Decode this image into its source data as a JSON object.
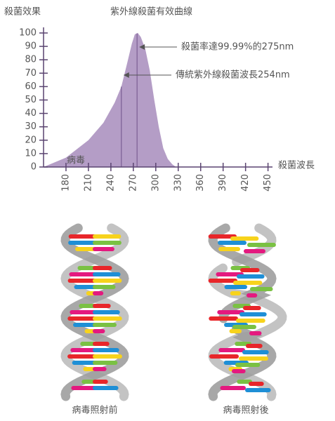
{
  "chart_data": {
    "type": "area",
    "title": "紫外線殺菌有效曲線",
    "y_label": "殺菌效果",
    "x_label": "殺菌波長",
    "baseline_label": "病毒",
    "x": [
      150,
      180,
      210,
      230,
      245,
      254,
      262,
      268,
      272,
      276,
      280,
      286,
      292,
      298,
      304,
      310,
      316,
      322,
      327
    ],
    "values": [
      0,
      7,
      20,
      33,
      48,
      60,
      78,
      92,
      99,
      100,
      97,
      88,
      72,
      50,
      30,
      14,
      6,
      2,
      0
    ],
    "color": "#b49dc6",
    "line_color": "#7b5d93",
    "xlim": [
      150,
      456
    ],
    "ylim": [
      0,
      100
    ],
    "xticks": [
      180,
      210,
      240,
      270,
      300,
      330,
      360,
      390,
      420,
      450
    ],
    "yticks": [
      0,
      10,
      20,
      30,
      40,
      50,
      60,
      70,
      80,
      90,
      100
    ],
    "annotations": [
      {
        "text": "殺菌率達99.99%的275nm",
        "x": 275
      },
      {
        "text": "傳統紫外線殺菌波長254nm",
        "x": 254
      }
    ]
  },
  "illustrations": {
    "before": "病毒照射前",
    "after": "病毒照射後"
  }
}
